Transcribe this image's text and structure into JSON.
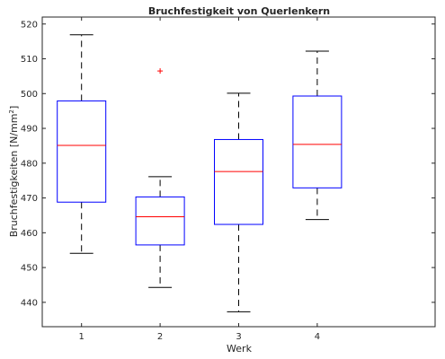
{
  "chart_data": {
    "type": "boxplot",
    "title": "Bruchfestigkeit von Querlenkern",
    "xlabel": "Werk",
    "ylabel_text": "Bruchfestigkeiten [N/mm",
    "ylabel_sup": "2",
    "ylabel_close": "]",
    "categories": [
      "1",
      "2",
      "3",
      "4"
    ],
    "ylim": [
      433,
      522
    ],
    "yticks": [
      440,
      450,
      460,
      470,
      480,
      490,
      500,
      510,
      520
    ],
    "grid": false,
    "boxes": [
      {
        "category": "1",
        "whisker_low": 454.1,
        "q1": 468.8,
        "median": 485.1,
        "q3": 497.9,
        "whisker_high": 516.9,
        "outliers": []
      },
      {
        "category": "2",
        "whisker_low": 444.3,
        "q1": 456.5,
        "median": 464.6,
        "q3": 470.3,
        "whisker_high": 476.1,
        "outliers": [
          506.5
        ]
      },
      {
        "category": "3",
        "whisker_low": 437.3,
        "q1": 462.4,
        "median": 477.6,
        "q3": 486.8,
        "whisker_high": 500.1,
        "outliers": []
      },
      {
        "category": "4",
        "whisker_low": 463.8,
        "q1": 472.9,
        "median": 485.4,
        "q3": 499.3,
        "whisker_high": 512.2,
        "outliers": []
      }
    ],
    "colors": {
      "box": "#0000ff",
      "median": "#ff0000",
      "whisker": "#000000",
      "outlier": "#ff0000",
      "axes": "#262626"
    }
  }
}
